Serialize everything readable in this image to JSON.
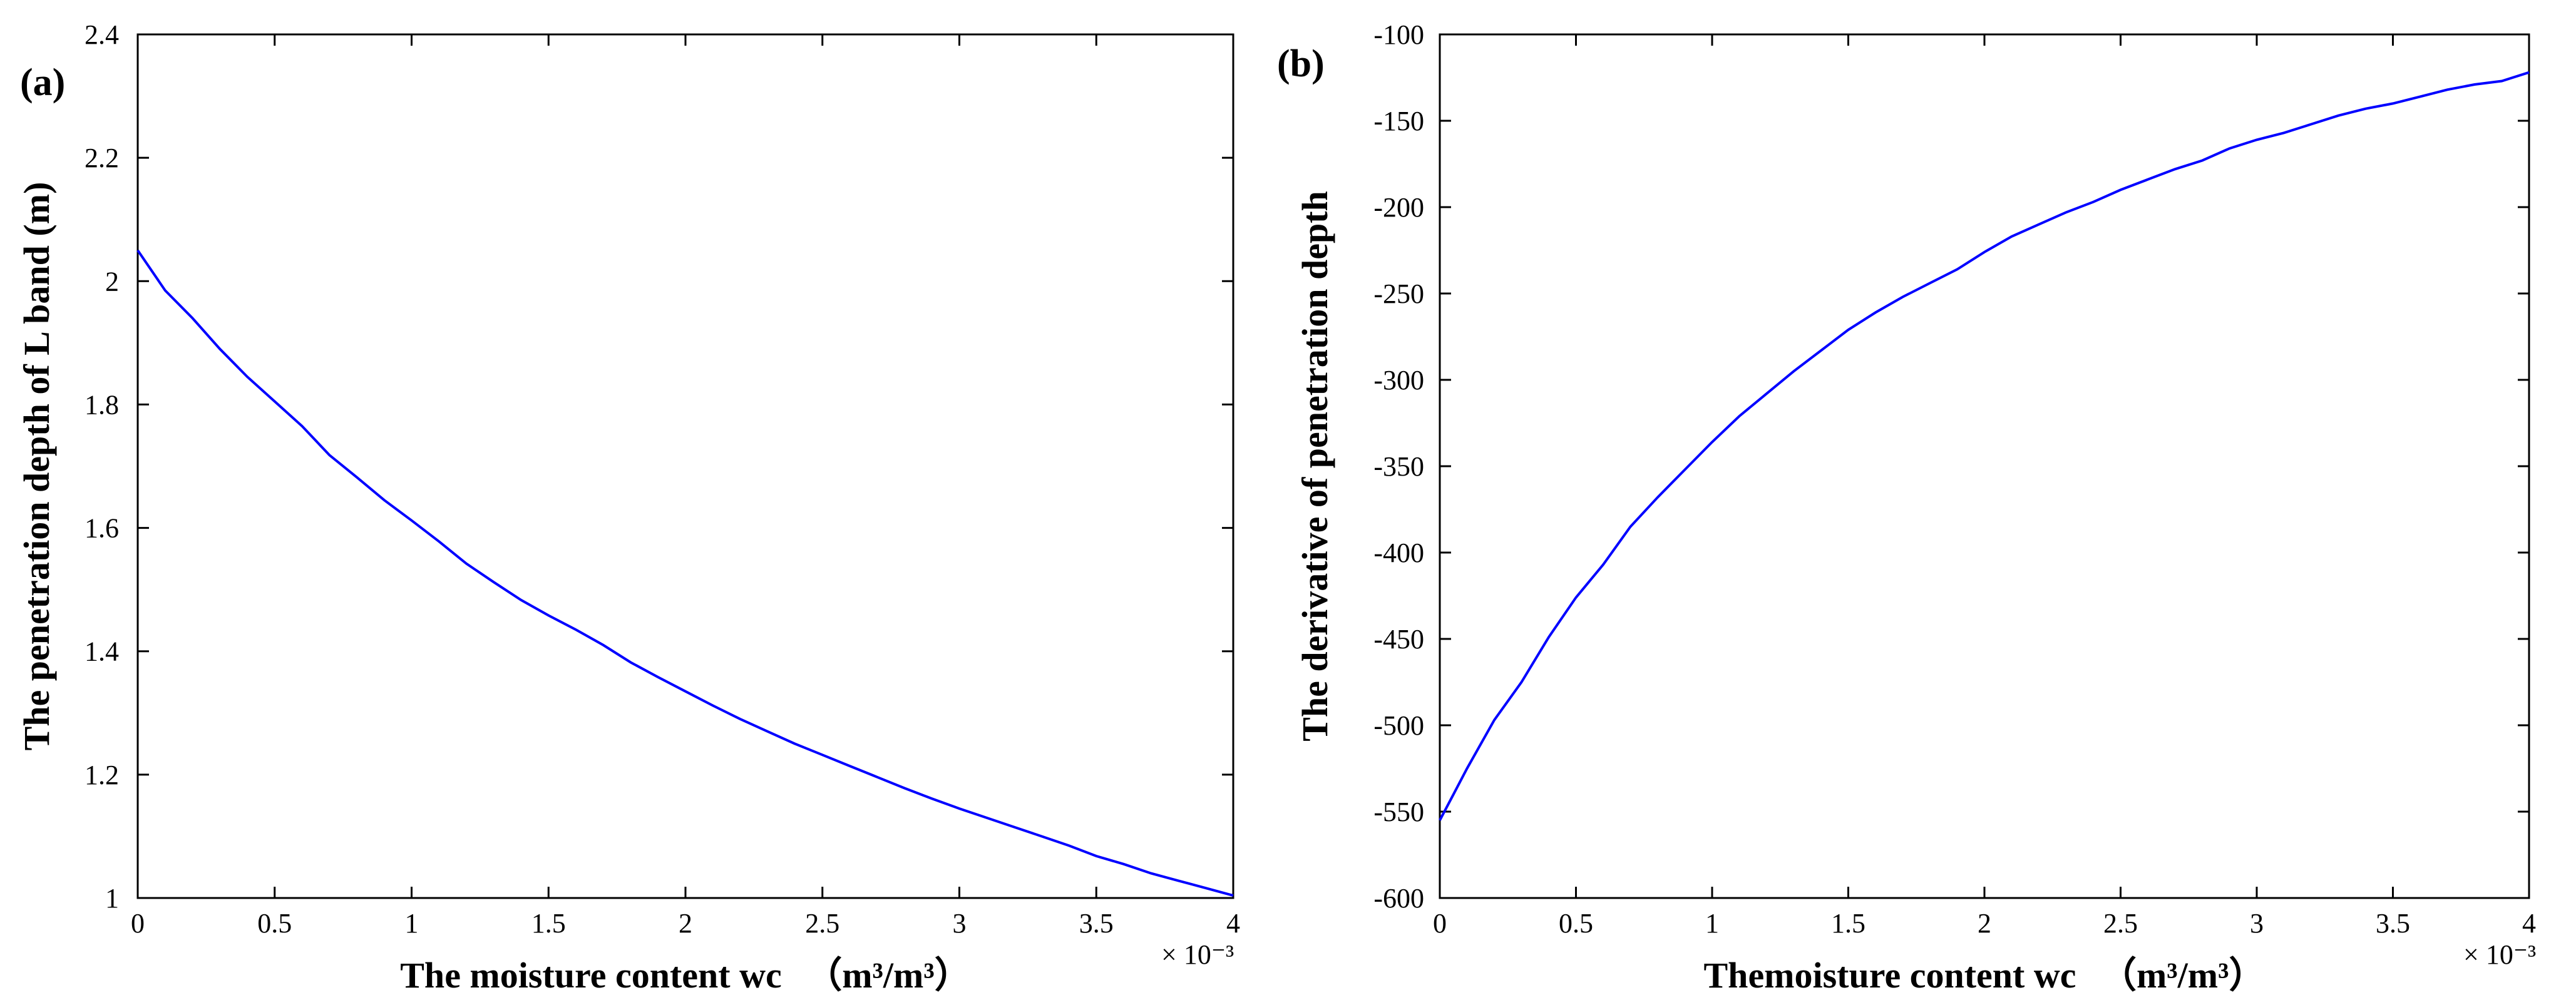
{
  "colors": {
    "line": "#0000ff",
    "axis": "#000000",
    "background": "#ffffff"
  },
  "chart_data": [
    {
      "type": "line",
      "panel_label": "(a)",
      "xlabel": "The moisture content wc",
      "xlabel_unit": "（m³/m³）",
      "ylabel": "The penetration depth of L band (m)",
      "x_multiplier": "× 10⁻³",
      "xlim": [
        0,
        4
      ],
      "ylim": [
        1,
        2.4
      ],
      "x_ticks": [
        0,
        0.5,
        1,
        1.5,
        2,
        2.5,
        3,
        3.5,
        4
      ],
      "x_tick_labels": [
        "0",
        "0.5",
        "1",
        "1.5",
        "2",
        "2.5",
        "3",
        "3.5",
        "4"
      ],
      "y_ticks": [
        1,
        1.2,
        1.4,
        1.6,
        1.8,
        2,
        2.2,
        2.4
      ],
      "y_tick_labels": [
        "1",
        "1.2",
        "1.4",
        "1.6",
        "1.8",
        "2",
        "2.2",
        "2.4"
      ],
      "series": [
        {
          "name": "penetration depth",
          "x": [
            0,
            0.1,
            0.2,
            0.3,
            0.4,
            0.5,
            0.6,
            0.7,
            0.8,
            0.9,
            1.0,
            1.1,
            1.2,
            1.3,
            1.4,
            1.5,
            1.6,
            1.7,
            1.8,
            1.9,
            2.0,
            2.1,
            2.2,
            2.3,
            2.4,
            2.5,
            2.6,
            2.7,
            2.8,
            2.9,
            3.0,
            3.1,
            3.2,
            3.3,
            3.4,
            3.5,
            3.6,
            3.7,
            3.8,
            3.9,
            4.0
          ],
          "y": [
            2.05,
            1.985,
            1.94,
            1.89,
            1.845,
            1.805,
            1.765,
            1.718,
            1.682,
            1.645,
            1.612,
            1.578,
            1.542,
            1.512,
            1.483,
            1.458,
            1.435,
            1.41,
            1.382,
            1.358,
            1.335,
            1.312,
            1.29,
            1.27,
            1.25,
            1.232,
            1.214,
            1.196,
            1.178,
            1.161,
            1.145,
            1.13,
            1.115,
            1.1,
            1.085,
            1.068,
            1.055,
            1.04,
            1.028,
            1.016,
            1.004
          ]
        }
      ]
    },
    {
      "type": "line",
      "panel_label": "(b)",
      "xlabel": "Themoisture content wc",
      "xlabel_unit": "（m³/m³）",
      "ylabel": "The derivative of penetration depth",
      "x_multiplier": "× 10⁻³",
      "xlim": [
        0,
        4
      ],
      "ylim": [
        -600,
        -100
      ],
      "x_ticks": [
        0,
        0.5,
        1,
        1.5,
        2,
        2.5,
        3,
        3.5,
        4
      ],
      "x_tick_labels": [
        "0",
        "0.5",
        "1",
        "1.5",
        "2",
        "2.5",
        "3",
        "3.5",
        "4"
      ],
      "y_ticks": [
        -600,
        -550,
        -500,
        -450,
        -400,
        -350,
        -300,
        -250,
        -200,
        -150,
        -100
      ],
      "y_tick_labels": [
        "-600",
        "-550",
        "-500",
        "-450",
        "-400",
        "-350",
        "-300",
        "-250",
        "-200",
        "-150",
        "-100"
      ],
      "series": [
        {
          "name": "derivative",
          "x": [
            0,
            0.05,
            0.1,
            0.2,
            0.3,
            0.4,
            0.5,
            0.6,
            0.7,
            0.8,
            0.9,
            1.0,
            1.1,
            1.2,
            1.3,
            1.4,
            1.5,
            1.6,
            1.7,
            1.8,
            1.9,
            2.0,
            2.1,
            2.2,
            2.3,
            2.4,
            2.5,
            2.6,
            2.7,
            2.8,
            2.9,
            3.0,
            3.1,
            3.2,
            3.3,
            3.4,
            3.5,
            3.6,
            3.7,
            3.8,
            3.9,
            4.0
          ],
          "y": [
            -555,
            -540,
            -525,
            -497,
            -475,
            -449,
            -426,
            -407,
            -385,
            -368,
            -352,
            -336,
            -321,
            -308,
            -295,
            -283,
            -271,
            -261,
            -252,
            -244,
            -236,
            -226,
            -217,
            -210,
            -203,
            -197,
            -190,
            -184,
            -178,
            -173,
            -166,
            -161,
            -157,
            -152,
            -147,
            -143,
            -140,
            -136,
            -132,
            -129,
            -127,
            -122
          ]
        }
      ]
    }
  ]
}
